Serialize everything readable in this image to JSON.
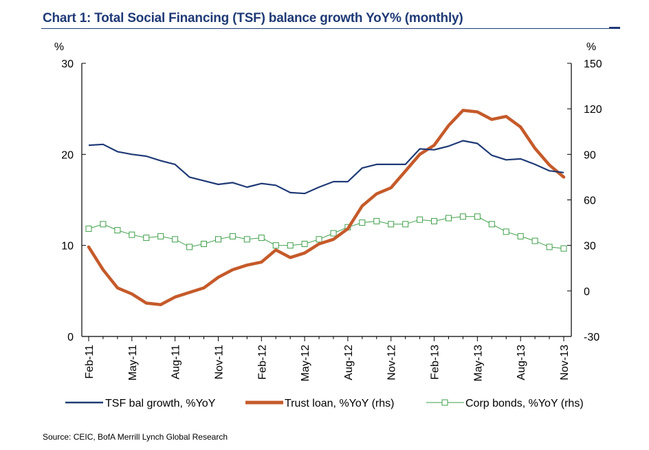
{
  "title": "Chart 1: Total Social Financing (TSF) balance growth YoY% (monthly)",
  "source": "Source: CEIC, BofA Merrill Lynch Global Research",
  "chart_data": {
    "type": "line",
    "left_axis": {
      "unit_label": "%",
      "ylim": [
        0,
        30
      ],
      "ticks": [
        0,
        10,
        20,
        30
      ]
    },
    "right_axis": {
      "unit_label": "%",
      "ylim": [
        -30,
        150
      ],
      "ticks": [
        -30,
        0,
        30,
        60,
        90,
        120,
        150
      ]
    },
    "x_tick_labels": [
      "Feb-11",
      "May-11",
      "Aug-11",
      "Nov-11",
      "Feb-12",
      "May-12",
      "Aug-12",
      "Nov-12",
      "Feb-13",
      "May-13",
      "Aug-13",
      "Nov-13"
    ],
    "categories": [
      "Feb-11",
      "Mar-11",
      "Apr-11",
      "May-11",
      "Jun-11",
      "Jul-11",
      "Aug-11",
      "Sep-11",
      "Oct-11",
      "Nov-11",
      "Dec-11",
      "Jan-12",
      "Feb-12",
      "Mar-12",
      "Apr-12",
      "May-12",
      "Jun-12",
      "Jul-12",
      "Aug-12",
      "Sep-12",
      "Oct-12",
      "Nov-12",
      "Dec-12",
      "Jan-13",
      "Feb-13",
      "Mar-13",
      "Apr-13",
      "May-13",
      "Jun-13",
      "Jul-13",
      "Aug-13",
      "Sep-13",
      "Oct-13",
      "Nov-13"
    ],
    "grid": false,
    "legend_position": "bottom",
    "series": [
      {
        "name": "TSF bal growth, %YoY",
        "axis": "left",
        "color": "#1f3a76",
        "values": [
          21.0,
          21.1,
          20.3,
          20.0,
          19.8,
          19.3,
          18.9,
          17.5,
          17.1,
          16.7,
          16.9,
          16.4,
          16.8,
          16.6,
          15.8,
          15.7,
          16.4,
          17.0,
          17.0,
          18.5,
          18.9,
          18.9,
          18.9,
          20.6,
          20.5,
          20.9,
          21.5,
          21.2,
          19.9,
          19.4,
          19.5,
          18.9,
          18.2,
          18.0
        ]
      },
      {
        "name": "Trust loan, %YoY (rhs)",
        "axis": "right",
        "color": "#c55a2a",
        "values": [
          29,
          14,
          2,
          -2,
          -8,
          -9,
          -4,
          -1,
          2,
          9,
          14,
          17,
          19,
          27,
          22,
          25,
          31,
          34,
          41,
          56,
          64,
          68,
          79,
          90,
          96,
          109,
          119,
          118,
          113,
          115,
          108,
          94,
          83,
          75
        ]
      },
      {
        "name": "Corp bonds, %YoY (rhs)",
        "axis": "right",
        "color": "#3f9f4a",
        "values": [
          41,
          44,
          40,
          37,
          35,
          36,
          34,
          29,
          31,
          34,
          36,
          34,
          35,
          30,
          30,
          31,
          34,
          38,
          42,
          45,
          46,
          44,
          44,
          47,
          46,
          48,
          49,
          49,
          44,
          39,
          36,
          33,
          29,
          28
        ]
      }
    ]
  }
}
